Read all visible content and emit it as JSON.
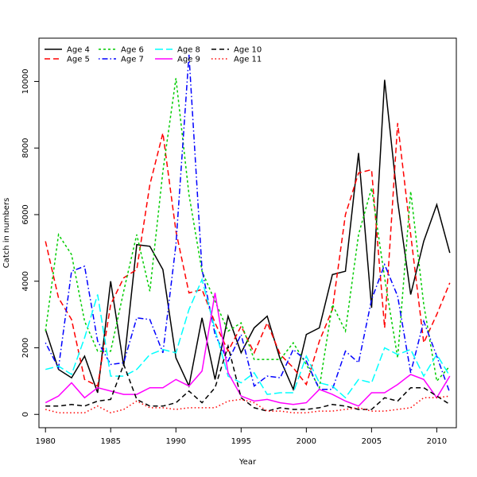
{
  "chart_data": {
    "type": "line",
    "title": "",
    "xlabel": "Year",
    "ylabel": "Catch in numbers",
    "xlim": [
      1979.5,
      2011.5
    ],
    "ylim": [
      -400,
      11300
    ],
    "x_ticks": [
      1980,
      1985,
      1990,
      1995,
      2000,
      2005,
      2010
    ],
    "y_ticks": [
      0,
      2000,
      4000,
      6000,
      8000,
      10000
    ],
    "grid": false,
    "legend_position": "top-left",
    "x": [
      1980,
      1981,
      1982,
      1983,
      1984,
      1985,
      1986,
      1987,
      1988,
      1989,
      1990,
      1991,
      1992,
      1993,
      1994,
      1995,
      1996,
      1997,
      1998,
      1999,
      2000,
      2001,
      2002,
      2003,
      2004,
      2005,
      2006,
      2007,
      2008,
      2009,
      2010,
      2011
    ],
    "series": [
      {
        "name": "Age 4",
        "color": "#000000",
        "dash": "solid",
        "values": [
          2550,
          1350,
          1100,
          1750,
          650,
          4000,
          1450,
          5100,
          5050,
          4350,
          1700,
          850,
          2900,
          1050,
          2950,
          1850,
          2600,
          2950,
          1650,
          750,
          2400,
          2600,
          4200,
          4300,
          7850,
          3200,
          10050,
          6400,
          3600,
          5200,
          6300,
          4850
        ]
      },
      {
        "name": "Age 5",
        "color": "#ff0000",
        "dash": "long",
        "values": [
          5200,
          3500,
          2850,
          1050,
          850,
          3300,
          4100,
          4350,
          6900,
          8450,
          5500,
          3650,
          3750,
          2750,
          1900,
          2650,
          1850,
          2750,
          1800,
          1400,
          900,
          2200,
          3150,
          6000,
          7250,
          7350,
          2600,
          8750,
          5400,
          2150,
          3000,
          3950
        ]
      },
      {
        "name": "Age 6",
        "color": "#00cc00",
        "dash": "short",
        "values": [
          2500,
          5400,
          4800,
          2800,
          1900,
          1900,
          3700,
          5400,
          3700,
          7300,
          10100,
          6600,
          4300,
          3400,
          2500,
          2750,
          1650,
          1650,
          1650,
          2150,
          1500,
          800,
          3300,
          2500,
          5400,
          6800,
          4100,
          1700,
          6700,
          3300,
          1000,
          1450
        ]
      },
      {
        "name": "Age 7",
        "color": "#0000ff",
        "dash": "dotdash",
        "values": [
          2150,
          1400,
          4300,
          4450,
          2200,
          1500,
          1550,
          2900,
          2850,
          1850,
          5100,
          10800,
          4350,
          2400,
          1600,
          2400,
          850,
          1150,
          1100,
          1950,
          1600,
          750,
          750,
          1900,
          1550,
          3450,
          4500,
          3550,
          1250,
          2800,
          1750,
          650
        ]
      },
      {
        "name": "Age 8",
        "color": "#00ffff",
        "dash": "longdash",
        "values": [
          1350,
          1450,
          1200,
          2300,
          3600,
          1150,
          1150,
          1350,
          1800,
          1950,
          1850,
          3150,
          4050,
          2550,
          1150,
          950,
          1250,
          600,
          650,
          650,
          1750,
          950,
          850,
          500,
          1050,
          950,
          2000,
          1800,
          1950,
          1150,
          1800,
          1150
        ]
      },
      {
        "name": "Age 9",
        "color": "#ff00ff",
        "dash": "solid",
        "values": [
          350,
          550,
          950,
          500,
          800,
          700,
          600,
          600,
          800,
          800,
          1050,
          850,
          1300,
          3650,
          1250,
          550,
          400,
          450,
          350,
          300,
          350,
          750,
          600,
          400,
          250,
          650,
          650,
          900,
          1200,
          1050,
          500,
          1150
        ]
      },
      {
        "name": "Age 10",
        "color": "#000000",
        "dash": "dash",
        "values": [
          250,
          250,
          300,
          250,
          400,
          450,
          1500,
          450,
          250,
          250,
          350,
          700,
          350,
          800,
          2050,
          500,
          200,
          100,
          200,
          150,
          150,
          200,
          300,
          250,
          150,
          150,
          500,
          400,
          800,
          800,
          550,
          300
        ]
      },
      {
        "name": "Age 11",
        "color": "#ff0000",
        "dash": "dotted",
        "values": [
          150,
          50,
          50,
          50,
          250,
          50,
          150,
          400,
          200,
          200,
          150,
          200,
          200,
          200,
          400,
          450,
          350,
          100,
          100,
          50,
          50,
          100,
          100,
          150,
          200,
          100,
          100,
          150,
          200,
          500,
          500,
          550
        ]
      }
    ]
  }
}
